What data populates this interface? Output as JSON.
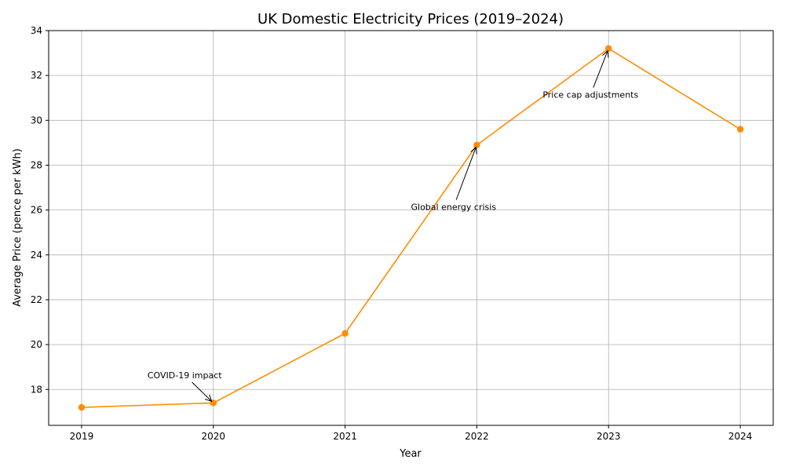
{
  "chart_data": {
    "type": "line",
    "title": "UK Domestic Electricity Prices (2019–2024)",
    "xlabel": "Year",
    "ylabel": "Average Price (pence per kWh)",
    "x": [
      2019,
      2020,
      2021,
      2022,
      2023,
      2024
    ],
    "series": [
      {
        "values": [
          17.2,
          17.4,
          20.5,
          28.9,
          33.2,
          29.6
        ],
        "color": "#ff8c00",
        "marker": "circle"
      }
    ],
    "xlim": [
      2018.75,
      2024.25
    ],
    "ylim": [
      16.4,
      34
    ],
    "xticks": [
      "2019",
      "2020",
      "2021",
      "2022",
      "2023",
      "2024"
    ],
    "yticks": [
      "18",
      "20",
      "22",
      "24",
      "26",
      "28",
      "30",
      "32",
      "34"
    ],
    "grid": true,
    "annotations": [
      {
        "text": "COVID-19 impact",
        "x": 2020,
        "y": 17.4,
        "text_x": 2019.5,
        "text_y": 18.5
      },
      {
        "text": "Global energy crisis",
        "x": 2022,
        "y": 28.9,
        "text_x": 2021.5,
        "text_y": 26
      },
      {
        "text": "Price cap adjustments",
        "x": 2023,
        "y": 33.2,
        "text_x": 2022.5,
        "text_y": 31
      }
    ]
  }
}
